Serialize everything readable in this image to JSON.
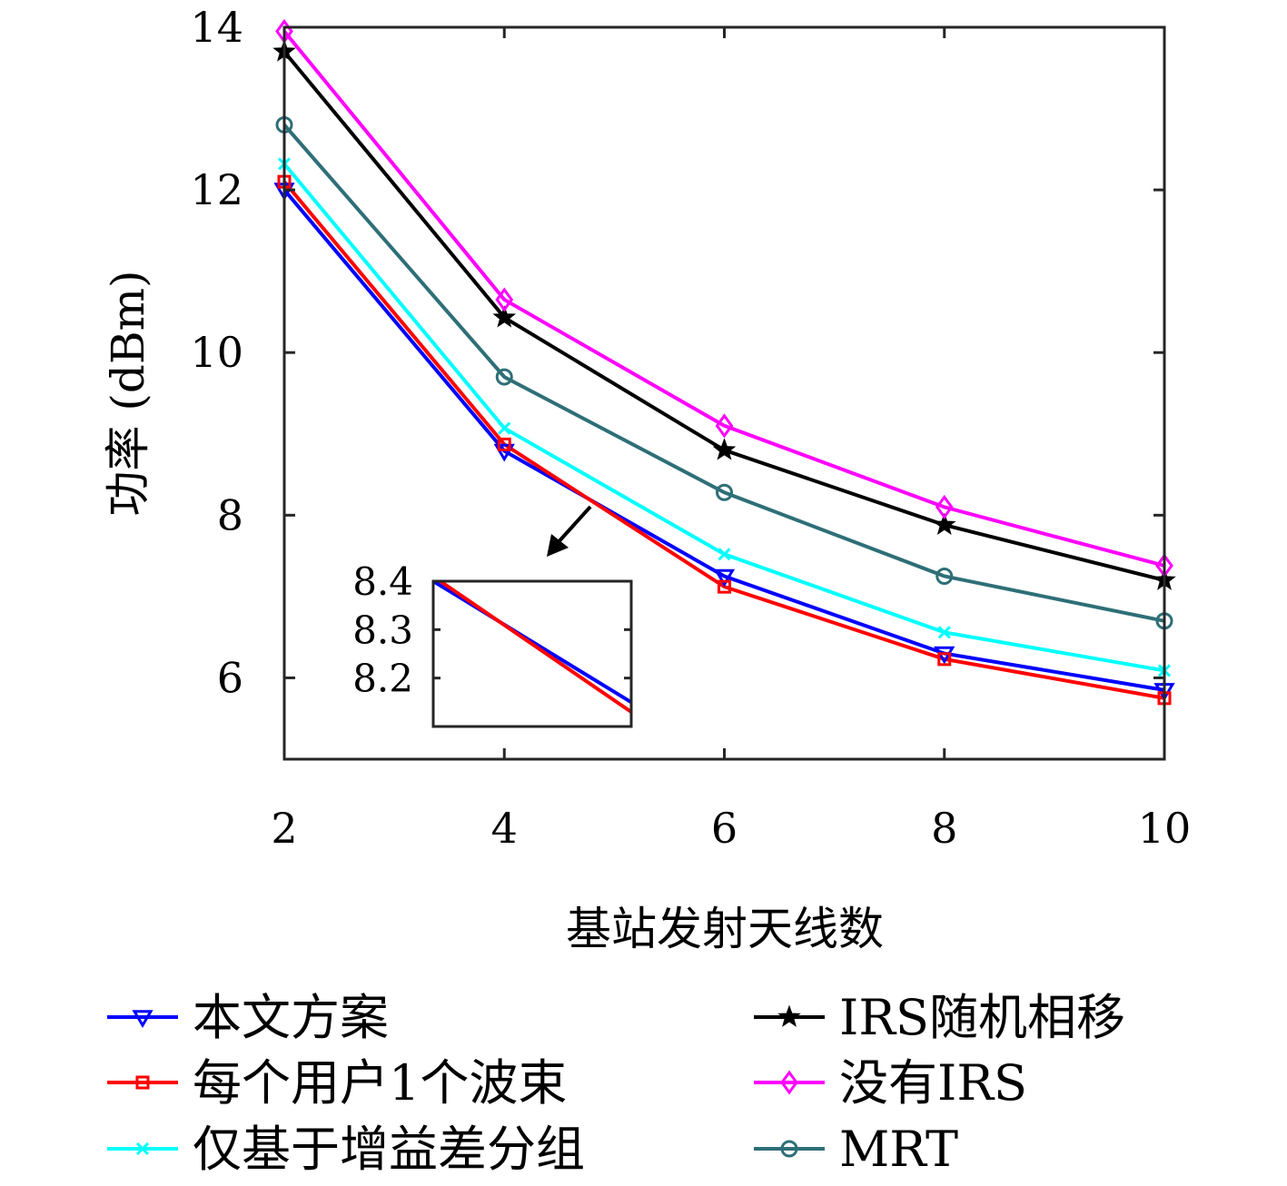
{
  "chart_data": {
    "type": "line",
    "xlabel": "基站发射天线数",
    "ylabel": "功率 (dBm)",
    "x": [
      2,
      4,
      6,
      8,
      10
    ],
    "xlim": [
      2,
      10
    ],
    "ylim": [
      5,
      14
    ],
    "xticks": [
      "2",
      "4",
      "6",
      "8",
      "10"
    ],
    "yticks": [
      "6",
      "8",
      "10",
      "12",
      "14"
    ],
    "grid": false,
    "legend_position": "bottom",
    "series": [
      {
        "name": "本文方案",
        "color": "#0000ff",
        "marker": "triangle-down",
        "values": [
          12.0,
          8.79,
          7.25,
          6.3,
          5.85
        ]
      },
      {
        "name": "每个用户1个波束",
        "color": "#ff0000",
        "marker": "square",
        "values": [
          12.1,
          8.87,
          7.12,
          6.23,
          5.75
        ]
      },
      {
        "name": "仅基于增益差分组",
        "color": "#00ffff",
        "marker": "x",
        "values": [
          12.32,
          9.07,
          7.52,
          6.56,
          6.09
        ]
      },
      {
        "name": "IRS随机相移",
        "color": "#000000",
        "marker": "star",
        "values": [
          13.7,
          10.43,
          8.8,
          7.88,
          7.2
        ]
      },
      {
        "name": "没有IRS",
        "color": "#ff00ff",
        "marker": "diamond",
        "values": [
          13.95,
          10.65,
          9.1,
          8.1,
          7.38
        ]
      },
      {
        "name": "MRT",
        "color": "#2e6f77",
        "marker": "circle",
        "values": [
          12.8,
          9.7,
          8.28,
          7.25,
          6.7
        ]
      }
    ],
    "inset": {
      "yticks": [
        "8.4",
        "8.3",
        "8.2"
      ],
      "ylim": [
        8.1,
        8.4
      ],
      "xlim": [
        4.62,
        4.76
      ],
      "series": [
        {
          "color": "#0000ff",
          "x": [
            4.62,
            4.76
          ],
          "values": [
            8.4,
            8.15
          ]
        },
        {
          "color": "#ff0000",
          "x": [
            4.62,
            4.76
          ],
          "values": [
            8.41,
            8.13
          ]
        }
      ]
    }
  }
}
